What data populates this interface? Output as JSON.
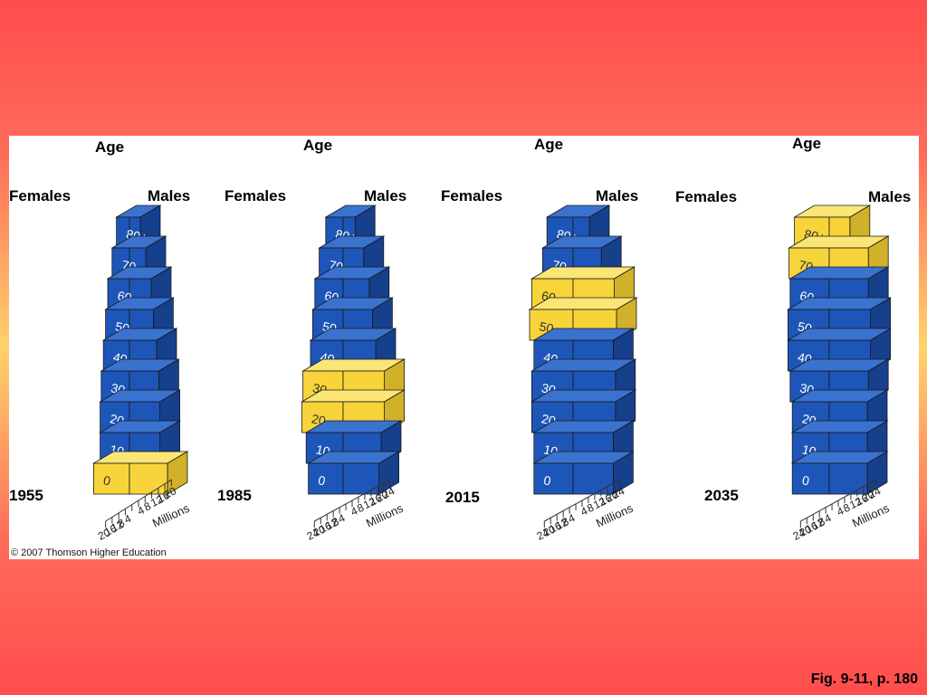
{
  "colors": {
    "baseline_front": "#1d56b8",
    "baseline_side": "#163f8c",
    "baseline_top": "#3a72d0",
    "cohort_front": "#f7d43a",
    "cohort_side": "#d1b02a",
    "cohort_top": "#fbe675",
    "outline": "#1a1a1a"
  },
  "copyright": "© 2007 Thomson Higher Education",
  "figure_ref": "Fig. 9-11, p. 180",
  "chart_data": [
    {
      "type": "bar",
      "chart_style": "3d age-sex population pyramid",
      "year_label": "1955",
      "left_label": "Females",
      "right_label": "Males",
      "y_axis_label": "Age",
      "x_axis_label": "Millions",
      "x_ticks_female": [
        "20",
        "16",
        "12",
        "8",
        "4"
      ],
      "x_ticks_male": [
        "4",
        "8",
        "12",
        "16",
        "20"
      ],
      "xlim": [
        0,
        20
      ],
      "categories": [
        "0",
        "10",
        "20",
        "30",
        "40",
        "50",
        "60",
        "70",
        "80+"
      ],
      "series": [
        {
          "name": "Females",
          "values": [
            16.5,
            13.5,
            13.5,
            13,
            12,
            11,
            10,
            8,
            6
          ]
        },
        {
          "name": "Males",
          "values": [
            17.5,
            14,
            14,
            13.5,
            12.5,
            11,
            10,
            7.5,
            5
          ]
        }
      ],
      "highlighted_cohort": [
        "0"
      ]
    },
    {
      "type": "bar",
      "chart_style": "3d age-sex population pyramid",
      "year_label": "1985",
      "left_label": "Females",
      "right_label": "Males",
      "y_axis_label": "Age",
      "x_axis_label": "Millions",
      "x_ticks_female": [
        "24",
        "20",
        "16",
        "12",
        "8",
        "4"
      ],
      "x_ticks_male": [
        "4",
        "8",
        "12",
        "16",
        "20",
        "24"
      ],
      "xlim": [
        0,
        24
      ],
      "categories": [
        "0",
        "10",
        "20",
        "30",
        "40",
        "50",
        "60",
        "70",
        "80+"
      ],
      "series": [
        {
          "name": "Females",
          "values": [
            16,
            17,
            19,
            18.5,
            15,
            14,
            13,
            11,
            8
          ]
        },
        {
          "name": "Males",
          "values": [
            16.5,
            17.5,
            19,
            19,
            15,
            13.5,
            12,
            9.5,
            5.5
          ]
        }
      ],
      "highlighted_cohort": [
        "20",
        "30"
      ]
    },
    {
      "type": "bar",
      "chart_style": "3d age-sex population pyramid",
      "year_label": "2015",
      "left_label": "Females",
      "right_label": "Males",
      "y_axis_label": "Age",
      "x_axis_label": "Millions",
      "x_ticks_female": [
        "24",
        "20",
        "16",
        "12",
        "8",
        "4"
      ],
      "x_ticks_male": [
        "4",
        "8",
        "12",
        "16",
        "20",
        "24"
      ],
      "xlim": [
        0,
        24
      ],
      "categories": [
        "0",
        "10",
        "20",
        "30",
        "40",
        "50",
        "60",
        "70",
        "80+"
      ],
      "series": [
        {
          "name": "Females",
          "values": [
            18,
            18,
            19,
            19,
            18,
            20,
            19,
            14,
            12
          ]
        },
        {
          "name": "Males",
          "values": [
            18.5,
            18.5,
            19.5,
            19.5,
            18.5,
            20,
            19,
            13,
            7.5
          ]
        }
      ],
      "highlighted_cohort": [
        "50",
        "60"
      ]
    },
    {
      "type": "bar",
      "chart_style": "3d age-sex population pyramid",
      "year_label": "2035",
      "left_label": "Females",
      "right_label": "Males",
      "y_axis_label": "Age",
      "x_axis_label": "Millions",
      "x_ticks_female": [
        "24",
        "20",
        "16",
        "12",
        "8",
        "4"
      ],
      "x_ticks_male": [
        "4",
        "8",
        "12",
        "16",
        "20",
        "24"
      ],
      "xlim": [
        0,
        24
      ],
      "categories": [
        "0",
        "10",
        "20",
        "30",
        "40",
        "50",
        "60",
        "70",
        "80+"
      ],
      "series": [
        {
          "name": "Females",
          "values": [
            17,
            17,
            17,
            18,
            19,
            19,
            18,
            18.5,
            16
          ]
        },
        {
          "name": "Males",
          "values": [
            17.5,
            17.5,
            17.5,
            18,
            19,
            19,
            18,
            18,
            9.5
          ]
        }
      ],
      "highlighted_cohort": [
        "70",
        "80+"
      ]
    }
  ]
}
